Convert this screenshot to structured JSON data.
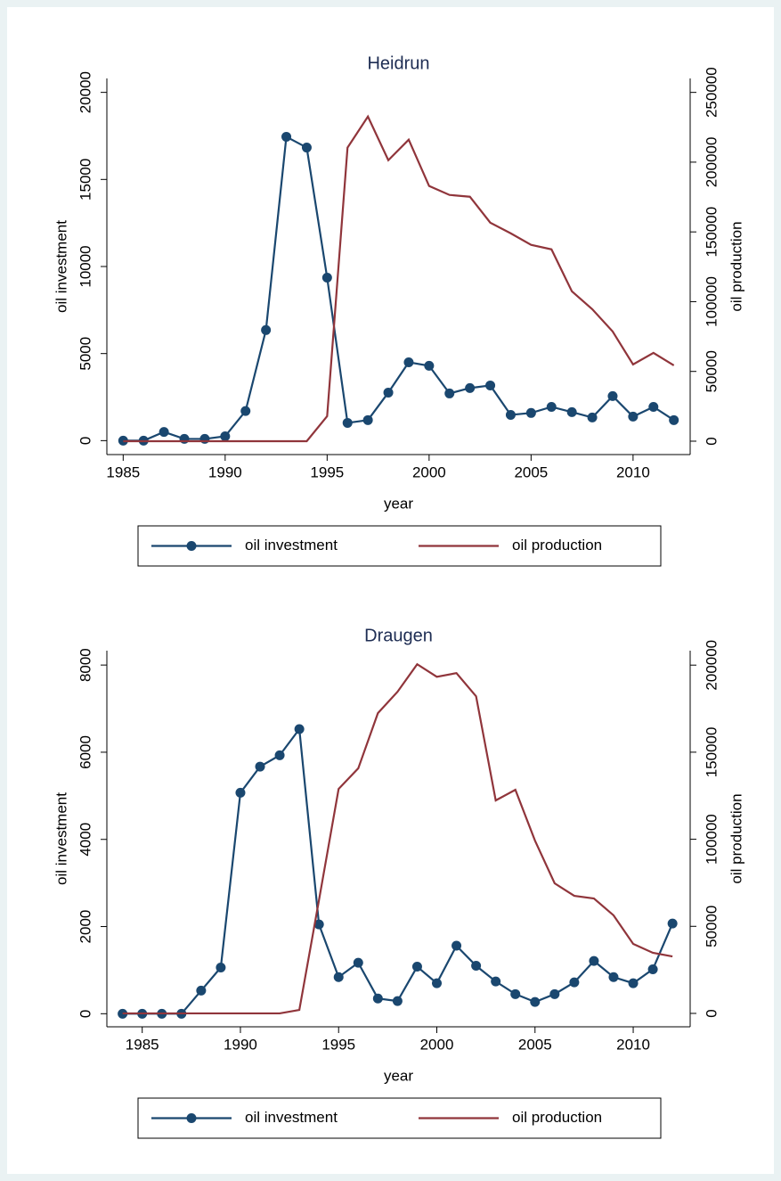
{
  "chart_data": [
    {
      "type": "line",
      "title": "Heidrun",
      "x_label": "year",
      "y_label": "oil investment",
      "y2_label": "oil production",
      "x": [
        1985,
        1986,
        1987,
        1988,
        1989,
        1990,
        1991,
        1992,
        1993,
        1994,
        1995,
        1996,
        1997,
        1998,
        1999,
        2000,
        2001,
        2002,
        2003,
        2004,
        2005,
        2006,
        2007,
        2008,
        2009,
        2010,
        2011,
        2012
      ],
      "xlim": [
        1984.2,
        2012.8
      ],
      "xticks": [
        1985,
        1990,
        1995,
        2000,
        2005,
        2010
      ],
      "ylim": [
        -800,
        20800
      ],
      "yticks": [
        0,
        5000,
        10000,
        15000,
        20000
      ],
      "y2lim": [
        -9600,
        260000
      ],
      "y2ticks": [
        0,
        50000,
        100000,
        150000,
        200000,
        250000
      ],
      "grid": false,
      "legend": "bottom",
      "series": [
        {
          "name": "oil investment",
          "color": "#1a476f",
          "marker": "circle",
          "values": [
            0,
            0,
            500,
            100,
            100,
            250,
            1700,
            6350,
            17450,
            16830,
            9360,
            1020,
            1180,
            2760,
            4500,
            4300,
            2710,
            3020,
            3170,
            1480,
            1590,
            1940,
            1640,
            1330,
            2560,
            1380,
            1940,
            1180
          ]
        },
        {
          "name": "oil production",
          "color": "#90353b",
          "axis": "y2",
          "values": [
            0,
            0,
            0,
            0,
            0,
            0,
            0,
            0,
            0,
            0,
            17900,
            210400,
            232700,
            201400,
            216100,
            182900,
            176500,
            175200,
            156600,
            149000,
            140700,
            137500,
            107400,
            94600,
            78600,
            55000,
            63300,
            54300
          ]
        }
      ]
    },
    {
      "type": "line",
      "title": "Draugen",
      "x_label": "year",
      "y_label": "oil investment",
      "y2_label": "oil production",
      "x": [
        1984,
        1985,
        1986,
        1987,
        1988,
        1989,
        1990,
        1991,
        1992,
        1993,
        1994,
        1995,
        1996,
        1997,
        1998,
        1999,
        2000,
        2001,
        2002,
        2003,
        2004,
        2005,
        2006,
        2007,
        2008,
        2009,
        2010,
        2011,
        2012
      ],
      "xlim": [
        1983.2,
        2012.9
      ],
      "xticks": [
        1985,
        1990,
        1995,
        2000,
        2005,
        2010
      ],
      "ylim": [
        -300,
        8330
      ],
      "yticks": [
        0,
        2000,
        4000,
        6000,
        8000
      ],
      "y2lim": [
        -7700,
        208300
      ],
      "y2ticks": [
        0,
        50000,
        100000,
        150000,
        200000
      ],
      "grid": false,
      "legend": "bottom",
      "series": [
        {
          "name": "oil investment",
          "color": "#1a476f",
          "marker": "circle",
          "values": [
            0,
            0,
            0,
            0,
            530,
            1060,
            5070,
            5670,
            5930,
            6530,
            2050,
            840,
            1170,
            350,
            290,
            1080,
            700,
            1560,
            1100,
            740,
            450,
            270,
            450,
            720,
            1210,
            840,
            700,
            1020,
            2070
          ]
        },
        {
          "name": "oil production",
          "color": "#90353b",
          "axis": "y2",
          "values": [
            0,
            0,
            0,
            0,
            0,
            0,
            0,
            0,
            0,
            2000,
            65000,
            128900,
            140700,
            172400,
            184700,
            200500,
            193300,
            195400,
            182100,
            122300,
            128400,
            99200,
            74700,
            67500,
            66000,
            56300,
            39900,
            34800,
            32700
          ]
        }
      ]
    }
  ]
}
